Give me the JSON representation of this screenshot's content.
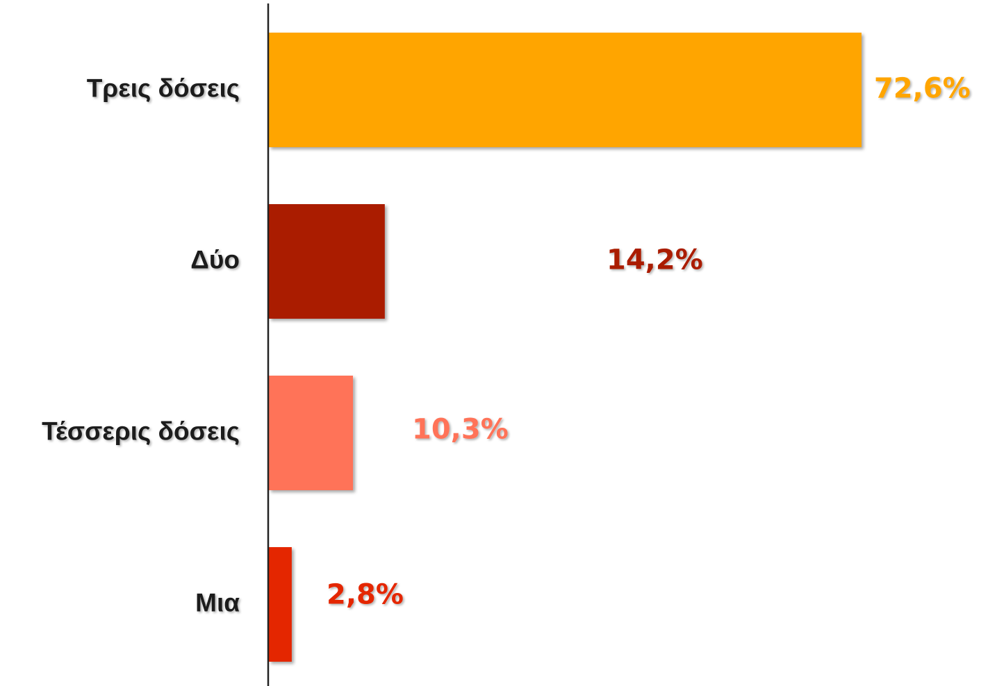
{
  "chart_data": {
    "type": "bar",
    "orientation": "horizontal",
    "categories": [
      "Τρεις δόσεις",
      "Δύο",
      "Τέσσερις δόσεις",
      "Μια"
    ],
    "values": [
      72.6,
      14.2,
      10.3,
      2.8
    ],
    "value_labels": [
      "72,6%",
      "14,2%",
      "10,3%",
      "2,8%"
    ],
    "colors": [
      "#ffa500",
      "#aa1e00",
      "#ff7359",
      "#e42700"
    ]
  }
}
